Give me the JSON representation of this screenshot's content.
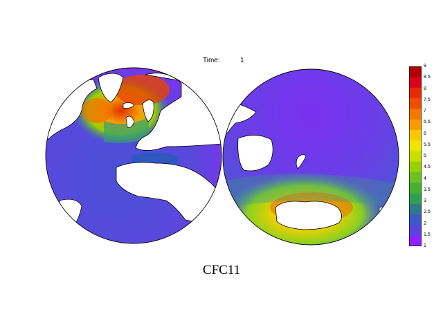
{
  "header": {
    "time_label": "Time:",
    "time_value": "1"
  },
  "caption": "CFC11",
  "colorbar": {
    "ticks": [
      "9",
      "8.5",
      "8",
      "7.5",
      "7",
      "6.5",
      "6",
      "5.5",
      "5",
      "4.5",
      "4",
      "3.5",
      "3",
      "2.5",
      "2",
      "1.5",
      "1"
    ],
    "colors": [
      "#b00000",
      "#d8001a",
      "#e82a00",
      "#f04c00",
      "#f57600",
      "#f89a00",
      "#f8c800",
      "#f0e400",
      "#c8e000",
      "#98d000",
      "#6cc020",
      "#48b030",
      "#30a050",
      "#2e7a8c",
      "#3c58c8",
      "#5a44e0",
      "#9020ff"
    ]
  },
  "map": {
    "projection": "two-hemisphere orthographic",
    "variable": "CFC11",
    "colors": {
      "ocean_low": "#8c2cf0",
      "ocean_mid": "#4a50d8",
      "north_atlantic_high": "#e83800",
      "southern_ocean_high": "#f4d000",
      "land": "#ffffff",
      "coast": "#000000"
    }
  }
}
